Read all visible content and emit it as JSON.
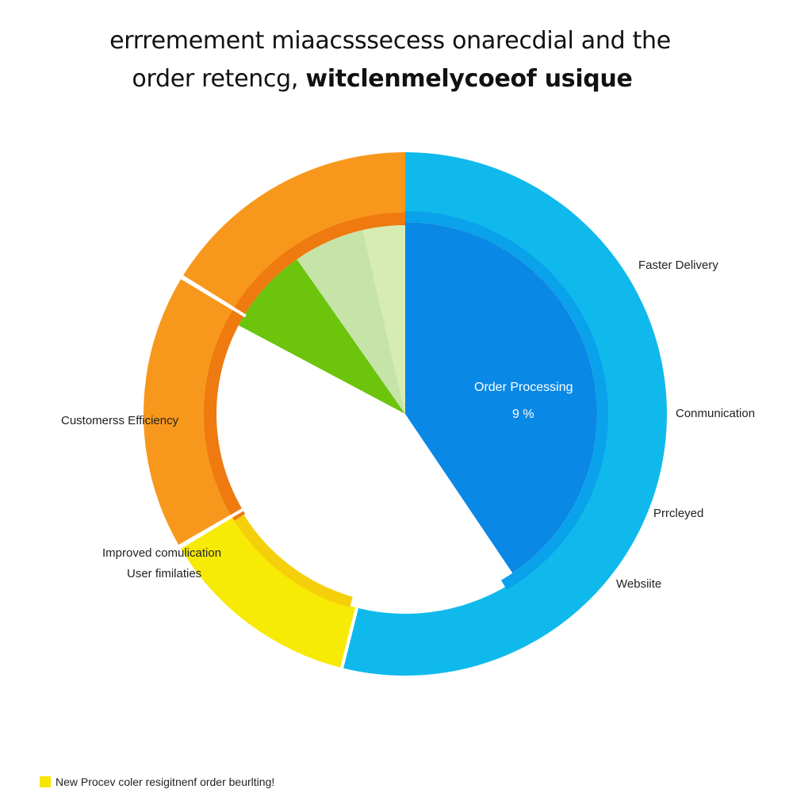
{
  "title": {
    "line1": "errremement miaacsssecess onarecdial and the",
    "line2_regular": "order retencg, ",
    "line2_bold": "witclenmelycoeof usique"
  },
  "colors": {
    "orange": "#f7981c",
    "orange_dark": "#ee7a10",
    "yellow": "#f7ea05",
    "yellow_inner": "#f5cf0a",
    "sky": "#10b9ec",
    "blue": "#0a88e6",
    "green": "#6cc40c",
    "light_green": "#c6e4a8",
    "pale_green": "#d6ecb2"
  },
  "chart_data": {
    "type": "pie",
    "title": "errremement miaacsssecess onarecdial and the order retencg, witclenmelycoeof usique",
    "outer_ring": [
      {
        "name": "Customerss Efficiency",
        "color": "#f7981c"
      },
      {
        "name": "Improved comulication",
        "color": "#f7ea05"
      },
      {
        "name": "Faster Delivery",
        "color": "#10b9ec"
      }
    ],
    "inner_slices": [
      {
        "name": "Order Processing",
        "value_label": "9 %",
        "color": "#0a88e6"
      },
      {
        "name": "",
        "color": "#6cc40c"
      },
      {
        "name": "",
        "color": "#c6e4a8"
      },
      {
        "name": "",
        "color": "#d6ecb2"
      }
    ],
    "labels": [
      "Faster Delivery",
      "Conmunication",
      "Prrcleyed",
      "Websiite",
      "Customerss Efficiency",
      "Improved comulication",
      "User fimilaties"
    ],
    "legend": [
      {
        "label": "New Procev coler resigitnenf order beurlting!",
        "color": "#f7e600"
      }
    ],
    "legend_position": "bottom-left"
  }
}
